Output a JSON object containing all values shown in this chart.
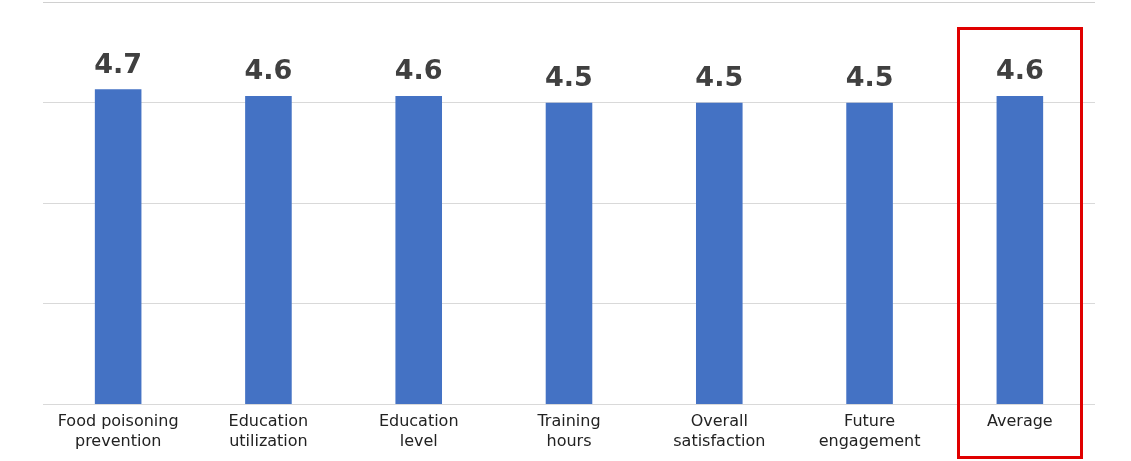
{
  "chart_data": {
    "type": "bar",
    "categories": [
      "Food poisoning prevention",
      "Education utilization",
      "Education level",
      "Training hours",
      "Overall satisfaction",
      "Future engagement",
      "Average"
    ],
    "values": [
      4.7,
      4.6,
      4.6,
      4.5,
      4.5,
      4.5,
      4.6
    ],
    "color": "#4472c4",
    "ylim": [
      0,
      6
    ],
    "yticks": [
      {
        "value": 0,
        "label": null
      },
      {
        "value": 1.5,
        "label": null
      },
      {
        "value": 3,
        "label": null
      },
      {
        "value": 4.5,
        "label": null
      }
    ],
    "tick_labels": "x",
    "grid": "y",
    "legend": false,
    "data_labels": true
  }
}
